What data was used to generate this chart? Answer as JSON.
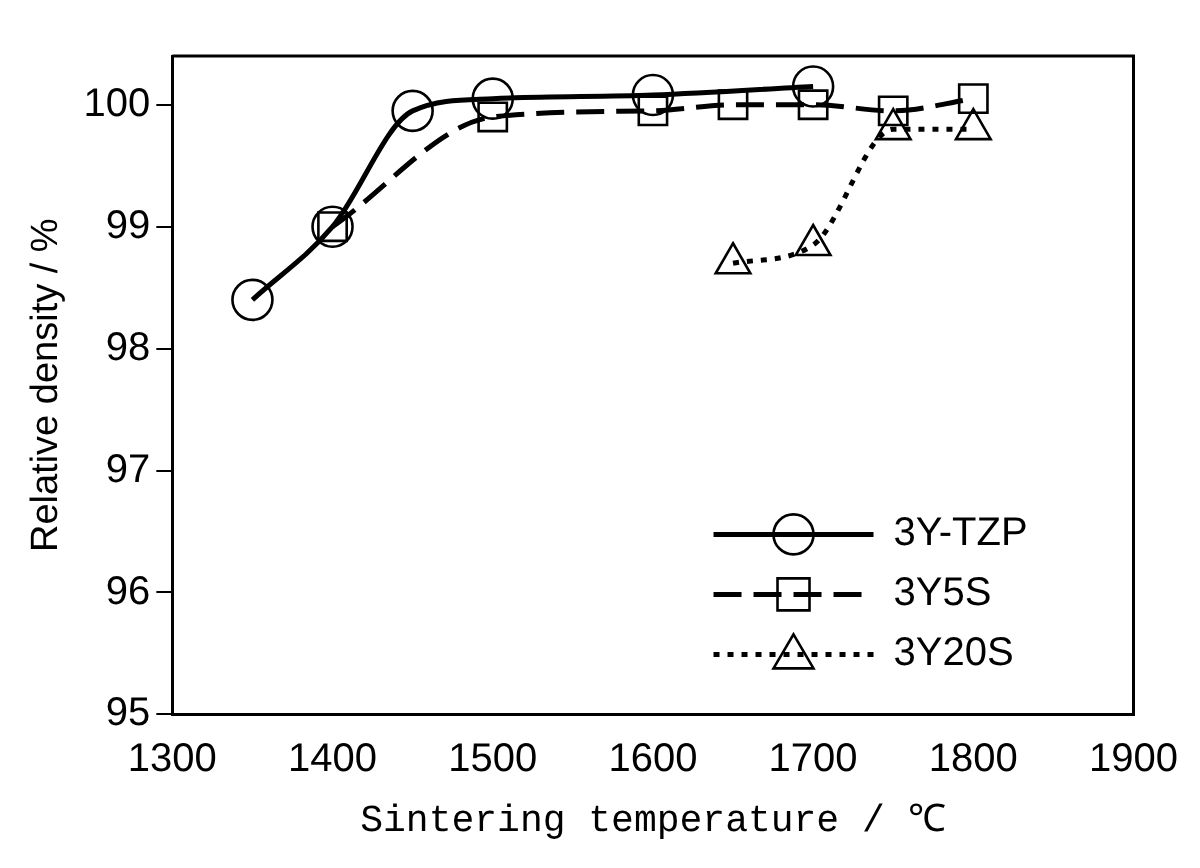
{
  "chart_data": {
    "type": "line",
    "xlabel": "Sintering temperature / ℃",
    "ylabel": "Relative density / %",
    "xlim": [
      1300,
      1900
    ],
    "xticks": [
      1300,
      1400,
      1500,
      1600,
      1700,
      1800,
      1900
    ],
    "ylim": [
      95,
      100.4
    ],
    "yticks": [
      95,
      96,
      97,
      98,
      99,
      100
    ],
    "grid": false,
    "legend": "bottom right",
    "series": [
      {
        "name": "3Y-TZP",
        "color": "#000000",
        "marker": "circle",
        "line_style": "solid",
        "x": [
          1350,
          1400,
          1450,
          1500,
          1600,
          1700
        ],
        "values": [
          98.4,
          99.0,
          99.95,
          100.05,
          100.08,
          100.15
        ]
      },
      {
        "name": "3Y5S",
        "color": "#000000",
        "marker": "square",
        "line_style": "dashed",
        "x": [
          1400,
          1500,
          1600,
          1650,
          1700,
          1750,
          1800
        ],
        "values": [
          99.0,
          99.9,
          99.95,
          100.0,
          100.0,
          99.95,
          100.05
        ]
      },
      {
        "name": "3Y20S",
        "color": "#000000",
        "marker": "triangle",
        "line_style": "dotted",
        "x": [
          1650,
          1700,
          1750,
          1800
        ],
        "values": [
          98.7,
          98.85,
          99.8,
          99.8
        ]
      }
    ]
  }
}
